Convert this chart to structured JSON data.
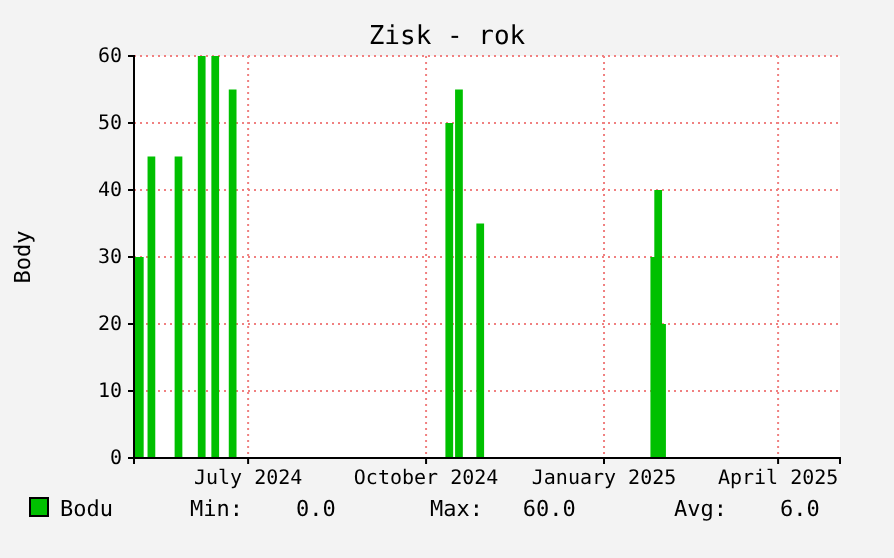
{
  "chart_data": {
    "type": "area",
    "title": "Zisk - rok",
    "ylabel": "Body",
    "xlim": [
      "2024-05-03",
      "2025-05-03"
    ],
    "xticks": [
      {
        "value": "2024-07-01",
        "label": "July 2024"
      },
      {
        "value": "2024-10-01",
        "label": "October 2024"
      },
      {
        "value": "2025-01-01",
        "label": "January 2025"
      },
      {
        "value": "2025-04-01",
        "label": "April 2025"
      }
    ],
    "ylim": [
      0,
      60
    ],
    "yticks": [
      0,
      10,
      20,
      30,
      40,
      50,
      60
    ],
    "grid": true,
    "legend": "bottom",
    "series": [
      {
        "name": "Bodu",
        "color": "#00c000",
        "x": [
          "2024-05-03",
          "2024-05-08",
          "2024-05-10",
          "2024-05-14",
          "2024-05-24",
          "2024-05-28",
          "2024-06-05",
          "2024-06-09",
          "2024-06-12",
          "2024-06-16",
          "2024-06-21",
          "2024-06-25",
          "2024-10-11",
          "2024-10-15",
          "2024-10-16",
          "2024-10-20",
          "2024-10-27",
          "2024-10-31",
          "2025-01-25",
          "2025-01-27",
          "2025-01-31",
          "2025-02-02",
          "2025-05-03"
        ],
        "values": [
          30,
          0,
          45,
          0,
          45,
          0,
          60,
          0,
          60,
          0,
          55,
          0,
          50,
          0,
          55,
          0,
          35,
          0,
          30,
          40,
          20,
          0,
          0
        ]
      }
    ],
    "annotations": [
      "Min:    0.0",
      "Max:   60.0",
      "Avg:    6.0"
    ]
  }
}
